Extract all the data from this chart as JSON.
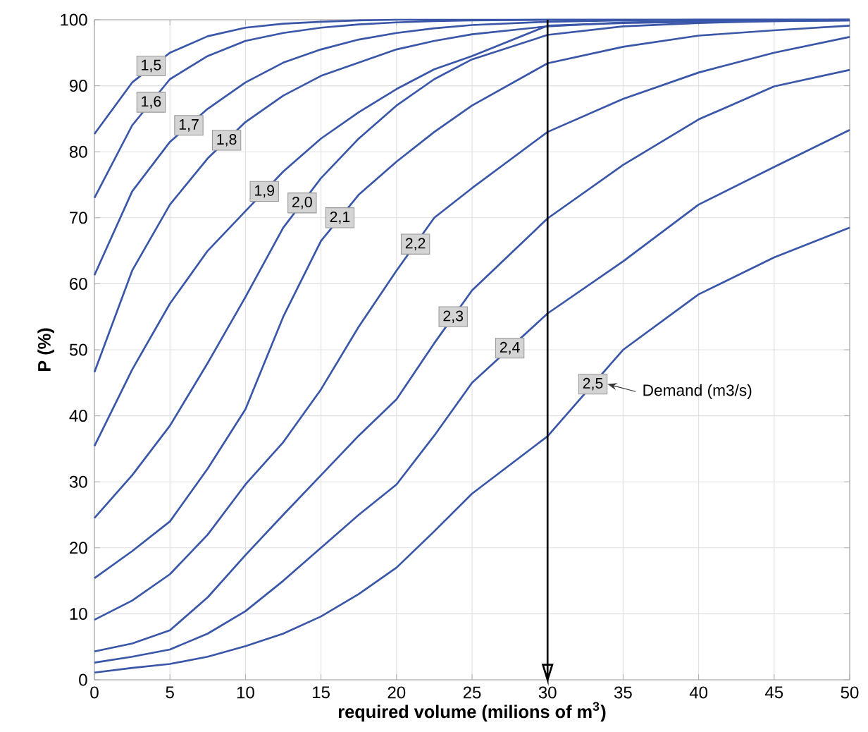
{
  "chart_data": {
    "type": "line",
    "xlabel": "required volume (milions of m$^{3}$)",
    "ylabel": "P (%)",
    "x": [
      0,
      2.5,
      5,
      7.5,
      10,
      12.5,
      15,
      17.5,
      20,
      22.5,
      25,
      30,
      35,
      40,
      45,
      50
    ],
    "xlim": [
      0,
      50
    ],
    "xticks": [
      0,
      5,
      10,
      15,
      20,
      25,
      30,
      35,
      40,
      45,
      50
    ],
    "ylim": [
      0,
      100
    ],
    "yticks": [
      0,
      10,
      20,
      30,
      40,
      50,
      60,
      70,
      80,
      90,
      100
    ],
    "grid": true,
    "line_style": "solid",
    "series": [
      {
        "color": "#3a56a8",
        "values": [
          82.7,
          90.5,
          95,
          97.5,
          98.8,
          99.4,
          99.7,
          99.9,
          100,
          100,
          100,
          100,
          100,
          100,
          100,
          100
        ]
      },
      {
        "color": "#3a56a8",
        "values": [
          73,
          84,
          91,
          94.5,
          96.8,
          98,
          98.8,
          99.3,
          99.6,
          99.8,
          99.9,
          100,
          100,
          100,
          100,
          100
        ]
      },
      {
        "color": "#3a56a8",
        "values": [
          61.3,
          74,
          81.5,
          86.5,
          90.5,
          93.5,
          95.5,
          97,
          98,
          98.7,
          99.2,
          99.7,
          99.9,
          100,
          100,
          100
        ]
      },
      {
        "color": "#3a56a8",
        "values": [
          46.6,
          62,
          72,
          79,
          84.5,
          88.5,
          91.5,
          93.5,
          95.5,
          96.8,
          97.8,
          99,
          99.6,
          99.8,
          99.9,
          100
        ]
      },
      {
        "color": "#3a56a8",
        "values": [
          35.4,
          47,
          57,
          65,
          71,
          77,
          82,
          86,
          89.5,
          92.5,
          94.5,
          99.1,
          99.5,
          99.7,
          99.8,
          99.9
        ]
      },
      {
        "color": "#3a56a8",
        "values": [
          24.5,
          31,
          38.5,
          48,
          58,
          68.5,
          76,
          82,
          87,
          91,
          94,
          97.7,
          99,
          99.5,
          99.8,
          99.9
        ]
      },
      {
        "color": "#3a56a8",
        "values": [
          15.4,
          19.5,
          24,
          32,
          41,
          55,
          66.5,
          73.5,
          78.5,
          83,
          87,
          93.4,
          95.9,
          97.6,
          98.4,
          99.1
        ]
      },
      {
        "color": "#3a56a8",
        "values": [
          9.1,
          12,
          16,
          22,
          29.6,
          36,
          44,
          53.5,
          62,
          70,
          74.5,
          83,
          88,
          92,
          95,
          97.4
        ]
      },
      {
        "color": "#3a56a8",
        "values": [
          4.3,
          5.5,
          7.5,
          12.5,
          18.9,
          25,
          31,
          37,
          42.5,
          51,
          59,
          69.9,
          78,
          84.9,
          89.9,
          92.4
        ]
      },
      {
        "color": "#3a56a8",
        "values": [
          2.6,
          3.5,
          4.6,
          7,
          10.4,
          15,
          20,
          25,
          29.6,
          37,
          45,
          55.5,
          63.4,
          72,
          77.7,
          83.3
        ]
      },
      {
        "color": "#3a56a8",
        "values": [
          1.1,
          1.8,
          2.4,
          3.5,
          5.1,
          7,
          9.6,
          13,
          17,
          22.5,
          28.2,
          36.9,
          50,
          58.4,
          64,
          68.5
        ]
      }
    ],
    "ref_lines": [
      {
        "axis": "x",
        "value": 30,
        "color": "#000000"
      }
    ],
    "annotations": [
      {
        "text": "1,5",
        "x": 3.75,
        "y": 93
      },
      {
        "text": "1,6",
        "x": 3.75,
        "y": 87.5
      },
      {
        "text": "1,7",
        "x": 6.25,
        "y": 84
      },
      {
        "text": "1,8",
        "x": 8.75,
        "y": 81.75
      },
      {
        "text": "1,9",
        "x": 11.25,
        "y": 74
      },
      {
        "text": "2,0",
        "x": 13.75,
        "y": 72.25
      },
      {
        "text": "2,1",
        "x": 16.25,
        "y": 70
      },
      {
        "text": "2,2",
        "x": 21.25,
        "y": 66
      },
      {
        "text": "2,3",
        "x": 23.75,
        "y": 55
      },
      {
        "text": "2,4",
        "x": 27.5,
        "y": 50.25
      },
      {
        "text": "2,5",
        "x": 33,
        "y": 44.8
      },
      "Demand (m3/s)"
    ]
  }
}
